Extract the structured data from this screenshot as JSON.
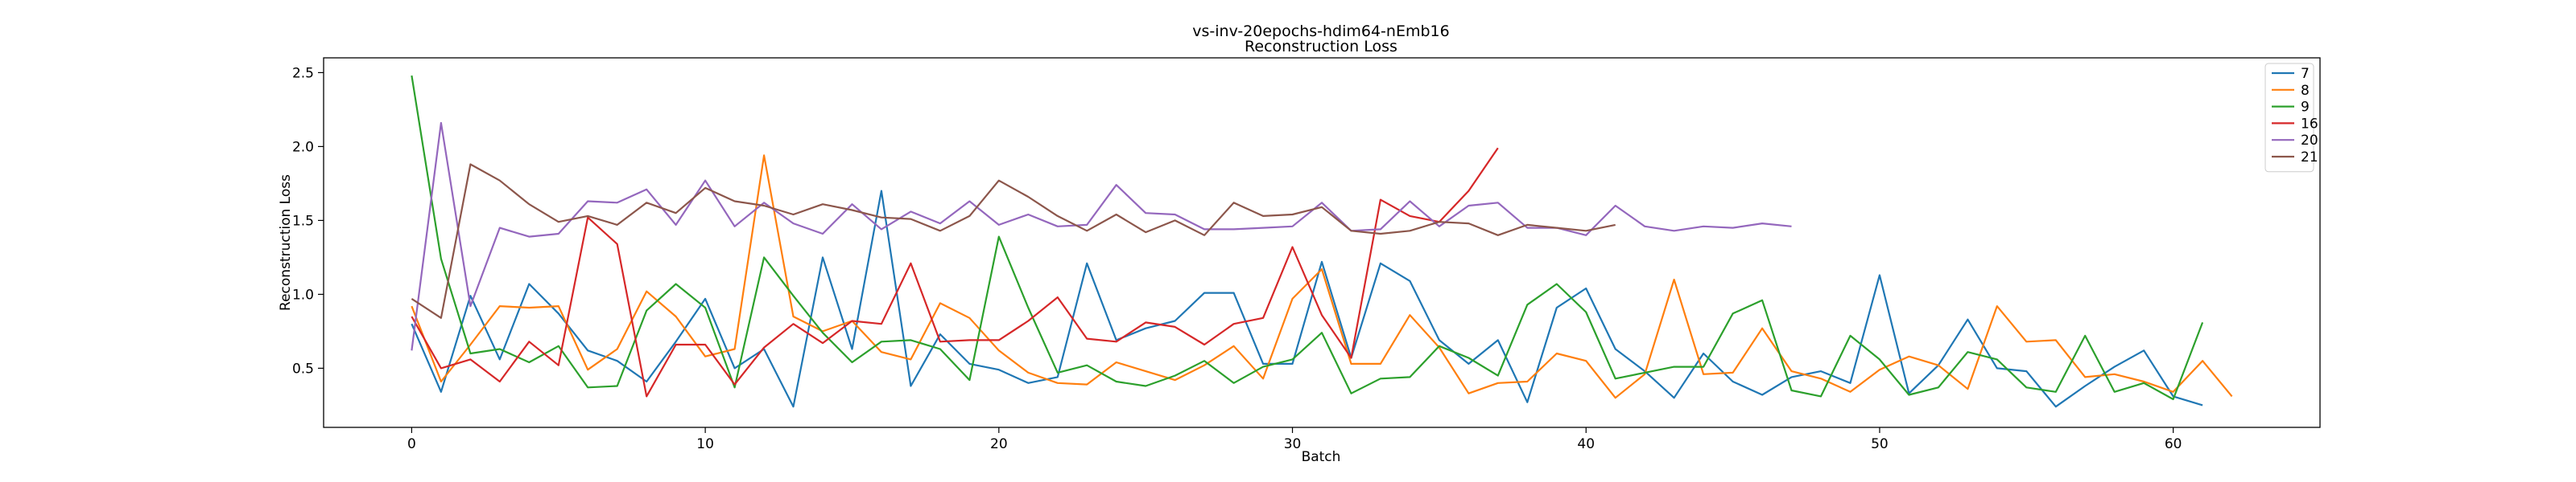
{
  "chart_data": {
    "type": "line",
    "title": "vs-inv-20epochs-hdim64-nEmb16",
    "subtitle": "Reconstruction Loss",
    "xlabel": "Batch",
    "ylabel": "Reconstruction Loss",
    "xlim": [
      -3,
      65
    ],
    "ylim": [
      0.1,
      2.6
    ],
    "xticks": [
      0,
      10,
      20,
      30,
      40,
      50,
      60
    ],
    "yticks": [
      0.5,
      1.0,
      1.5,
      2.0,
      2.5
    ],
    "ytick_labels": [
      "0.5",
      "1.0",
      "1.5",
      "2.0",
      "2.5"
    ],
    "grid": false,
    "legend_position": "top-right",
    "series": [
      {
        "name": "7",
        "color": "#1f77b4",
        "values": [
          0.8,
          0.34,
          0.99,
          0.56,
          1.07,
          0.87,
          0.62,
          0.55,
          0.41,
          0.68,
          0.97,
          0.5,
          0.63,
          0.24,
          1.25,
          0.63,
          1.7,
          0.38,
          0.73,
          0.53,
          0.49,
          0.4,
          0.44,
          1.21,
          0.69,
          0.77,
          0.82,
          1.01,
          1.01,
          0.53,
          0.53,
          1.22,
          0.57,
          1.21,
          1.09,
          0.69,
          0.53,
          0.69,
          0.27,
          0.91,
          1.04,
          0.63,
          0.48,
          0.3,
          0.6,
          0.41,
          0.32,
          0.44,
          0.48,
          0.4,
          1.13,
          0.33,
          0.52,
          0.83,
          0.5,
          0.48,
          0.24,
          0.38,
          0.51,
          0.62,
          0.31,
          0.25
        ]
      },
      {
        "name": "8",
        "color": "#ff7f0e",
        "values": [
          0.92,
          0.41,
          0.66,
          0.92,
          0.91,
          0.92,
          0.49,
          0.63,
          1.02,
          0.85,
          0.58,
          0.63,
          1.94,
          0.85,
          0.75,
          0.82,
          0.61,
          0.56,
          0.94,
          0.84,
          0.62,
          0.47,
          0.4,
          0.39,
          0.54,
          0.48,
          0.42,
          0.52,
          0.65,
          0.43,
          0.97,
          1.17,
          0.53,
          0.53,
          0.86,
          0.64,
          0.33,
          0.4,
          0.41,
          0.6,
          0.55,
          0.3,
          0.46,
          1.1,
          0.46,
          0.47,
          0.77,
          0.48,
          0.43,
          0.34,
          0.49,
          0.58,
          0.52,
          0.36,
          0.92,
          0.68,
          0.69,
          0.44,
          0.46,
          0.41,
          0.34,
          0.55,
          0.31
        ]
      },
      {
        "name": "9",
        "color": "#2ca02c",
        "values": [
          2.48,
          1.24,
          0.6,
          0.63,
          0.54,
          0.65,
          0.37,
          0.38,
          0.89,
          1.07,
          0.91,
          0.37,
          1.25,
          0.99,
          0.74,
          0.54,
          0.68,
          0.69,
          0.63,
          0.42,
          1.39,
          0.91,
          0.47,
          0.52,
          0.41,
          0.38,
          0.45,
          0.55,
          0.4,
          0.51,
          0.56,
          0.74,
          0.33,
          0.43,
          0.44,
          0.65,
          0.57,
          0.45,
          0.93,
          1.07,
          0.88,
          0.43,
          0.47,
          0.51,
          0.51,
          0.87,
          0.96,
          0.35,
          0.31,
          0.72,
          0.56,
          0.32,
          0.37,
          0.61,
          0.56,
          0.37,
          0.34,
          0.72,
          0.34,
          0.4,
          0.29,
          0.81
        ]
      },
      {
        "name": "16",
        "color": "#d62728",
        "values": [
          0.85,
          0.5,
          0.56,
          0.41,
          0.68,
          0.52,
          1.52,
          1.34,
          0.31,
          0.66,
          0.66,
          0.39,
          0.64,
          0.8,
          0.67,
          0.82,
          0.8,
          1.21,
          0.68,
          0.69,
          0.69,
          0.82,
          0.98,
          0.7,
          0.68,
          0.81,
          0.78,
          0.66,
          0.8,
          0.84,
          1.32,
          0.86,
          0.57,
          1.64,
          1.53,
          1.49,
          1.7,
          1.99
        ]
      },
      {
        "name": "20",
        "color": "#9467bd",
        "values": [
          0.62,
          2.16,
          0.92,
          1.45,
          1.39,
          1.41,
          1.63,
          1.62,
          1.71,
          1.47,
          1.77,
          1.46,
          1.62,
          1.48,
          1.41,
          1.61,
          1.44,
          1.56,
          1.48,
          1.63,
          1.47,
          1.54,
          1.46,
          1.47,
          1.74,
          1.55,
          1.54,
          1.44,
          1.44,
          1.45,
          1.46,
          1.62,
          1.43,
          1.44,
          1.63,
          1.46,
          1.6,
          1.62,
          1.45,
          1.45,
          1.4,
          1.6,
          1.46,
          1.43,
          1.46,
          1.45,
          1.48,
          1.46
        ]
      },
      {
        "name": "21",
        "color": "#8c564b",
        "values": [
          0.97,
          0.84,
          1.88,
          1.77,
          1.61,
          1.49,
          1.53,
          1.47,
          1.62,
          1.55,
          1.72,
          1.63,
          1.6,
          1.54,
          1.61,
          1.57,
          1.52,
          1.51,
          1.43,
          1.53,
          1.77,
          1.66,
          1.53,
          1.43,
          1.54,
          1.42,
          1.5,
          1.4,
          1.62,
          1.53,
          1.54,
          1.59,
          1.43,
          1.41,
          1.43,
          1.49,
          1.48,
          1.4,
          1.47,
          1.45,
          1.43,
          1.47
        ]
      }
    ]
  }
}
